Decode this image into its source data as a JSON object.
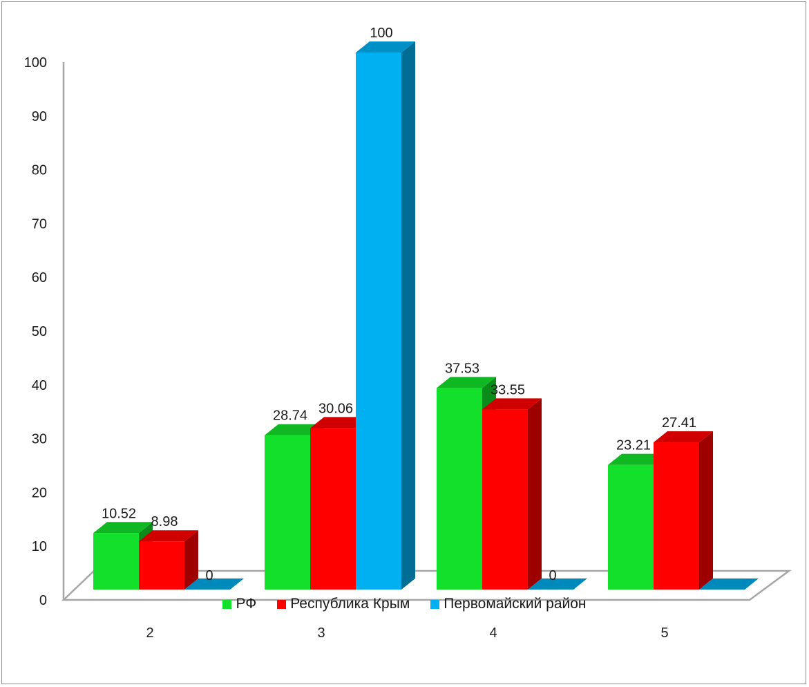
{
  "chart_data": {
    "type": "bar",
    "categories": [
      "2",
      "3",
      "4",
      "5"
    ],
    "series": [
      {
        "name": "РФ",
        "color": "#12e02a",
        "values": [
          10.52,
          28.74,
          37.53,
          23.21
        ],
        "labels": [
          "10.52",
          "28.74",
          "37.53",
          "23.21"
        ]
      },
      {
        "name": "Республика Крым",
        "color": "#ff0000",
        "values": [
          8.98,
          30.06,
          33.55,
          27.41
        ],
        "labels": [
          "8.98",
          "30.06",
          "33.55",
          "27.41"
        ]
      },
      {
        "name": "Первомайский район",
        "color": "#00b0f0",
        "values": [
          0,
          100,
          0,
          0
        ],
        "labels": [
          "0",
          "100",
          "0",
          ""
        ]
      }
    ],
    "y_ticks": [
      "0",
      "10",
      "20",
      "30",
      "40",
      "50",
      "60",
      "70",
      "80",
      "90",
      "100"
    ],
    "ylim": [
      0,
      100
    ],
    "grid": false,
    "legend_position": "bottom",
    "three_d": true
  }
}
